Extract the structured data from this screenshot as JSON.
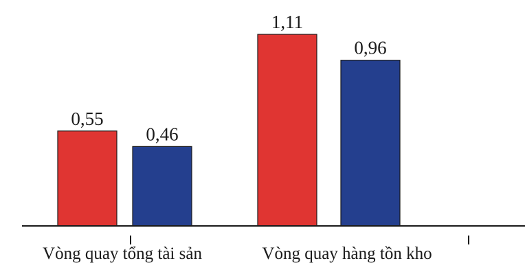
{
  "chart_data": {
    "type": "bar",
    "categories": [
      "Vòng quay tổng tài sản",
      "Vòng quay hàng tồn kho"
    ],
    "series": [
      {
        "color": "#e03532",
        "values": [
          0.55,
          1.11
        ],
        "value_labels": [
          "0,55",
          "1,11"
        ]
      },
      {
        "color": "#243f8e",
        "values": [
          0.46,
          0.96
        ],
        "value_labels": [
          "0,46",
          "0,96"
        ]
      }
    ],
    "ylim": [
      0,
      1.11
    ],
    "grid": false,
    "legend": "none",
    "axis_color": "#1a1a1a"
  }
}
